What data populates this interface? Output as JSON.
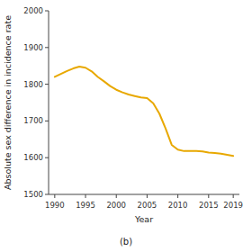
{
  "chart_data": {
    "type": "line",
    "x": [
      1990,
      1991,
      1992,
      1993,
      1994,
      1995,
      1996,
      1997,
      1998,
      1999,
      2000,
      2001,
      2002,
      2003,
      2004,
      2005,
      2006,
      2007,
      2008,
      2009,
      2010,
      2011,
      2012,
      2013,
      2014,
      2015,
      2016,
      2017,
      2018,
      2019
    ],
    "values": [
      1820,
      1828,
      1836,
      1843,
      1848,
      1845,
      1835,
      1820,
      1808,
      1795,
      1785,
      1778,
      1772,
      1768,
      1764,
      1762,
      1748,
      1720,
      1680,
      1635,
      1622,
      1618,
      1618,
      1618,
      1617,
      1614,
      1613,
      1611,
      1608,
      1605
    ],
    "color": "#E8A800",
    "xlabel": "Year",
    "ylabel": "Absolute sex difference in incidence rate",
    "caption": "(b)",
    "xlim": [
      1989,
      2020
    ],
    "ylim": [
      1500,
      2000
    ],
    "xticks": [
      1990,
      1995,
      2000,
      2005,
      2010,
      2015,
      2019
    ],
    "yticks": [
      1500,
      1600,
      1700,
      1800,
      1900,
      2000
    ]
  }
}
